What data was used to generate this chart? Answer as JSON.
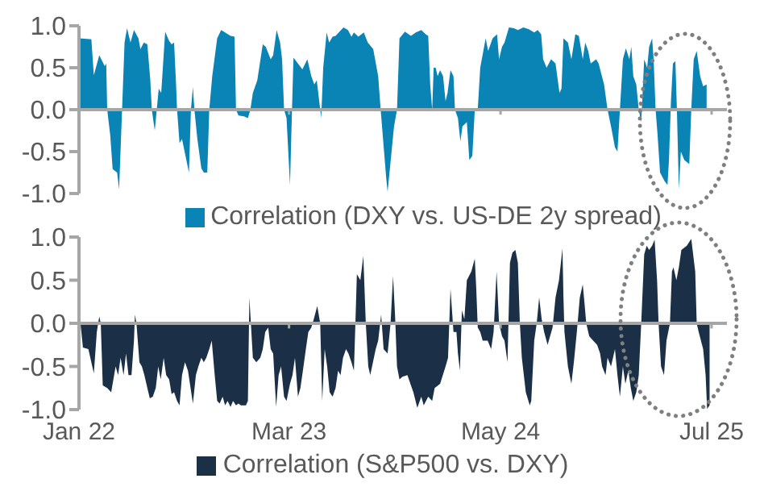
{
  "chart_data": [
    {
      "type": "area",
      "x": [
        "2022-01-02",
        "2022-01-26",
        "2022-01-31",
        "2022-02-11",
        "2022-02-22",
        "2022-02-25",
        "2022-02-27",
        "2022-03-05",
        "2022-03-10",
        "2022-03-19",
        "2022-03-23",
        "2022-03-29",
        "2022-04-03",
        "2022-04-08",
        "2022-04-15",
        "2022-04-22",
        "2022-05-01",
        "2022-05-05",
        "2022-05-12",
        "2022-05-19",
        "2022-05-25",
        "2022-05-28",
        "2022-06-03",
        "2022-06-07",
        "2022-06-11",
        "2022-06-16",
        "2022-06-24",
        "2022-07-02",
        "2022-07-07",
        "2022-07-12",
        "2022-07-16",
        "2022-07-18",
        "2022-07-23",
        "2022-07-28",
        "2022-08-11",
        "2022-08-15",
        "2022-08-19",
        "2022-08-22",
        "2022-08-28",
        "2022-09-05",
        "2022-09-10",
        "2022-09-17",
        "2022-09-21",
        "2022-09-27",
        "2022-10-07",
        "2022-10-15",
        "2022-10-23",
        "2022-11-03",
        "2022-11-11",
        "2022-11-14",
        "2022-11-19",
        "2022-11-30",
        "2022-12-08",
        "2022-12-13",
        "2022-12-18",
        "2022-12-27",
        "2023-01-07",
        "2023-01-13",
        "2023-01-23",
        "2023-01-28",
        "2023-02-04",
        "2023-02-11",
        "2023-02-15",
        "2023-02-19",
        "2023-02-24",
        "2023-03-03",
        "2023-03-07",
        "2023-03-10",
        "2023-03-19",
        "2023-03-28",
        "2023-04-07",
        "2023-04-15",
        "2023-04-21",
        "2023-04-26",
        "2023-05-03",
        "2023-05-05",
        "2023-05-09",
        "2023-05-16",
        "2023-05-21",
        "2023-05-28",
        "2023-06-03",
        "2023-06-14",
        "2023-06-19",
        "2023-06-28",
        "2023-07-05",
        "2023-07-10",
        "2023-07-19",
        "2023-07-30",
        "2023-08-07",
        "2023-08-18",
        "2023-08-28",
        "2023-09-02",
        "2023-09-13",
        "2023-09-16",
        "2023-09-21",
        "2023-09-29",
        "2023-10-05",
        "2023-10-10",
        "2023-10-21",
        "2023-11-02",
        "2023-11-12",
        "2023-11-23",
        "2023-12-02",
        "2023-12-07",
        "2023-12-11",
        "2023-12-15",
        "2023-12-18",
        "2023-12-22",
        "2023-12-26",
        "2023-12-31",
        "2024-01-06",
        "2024-01-11",
        "2024-01-15",
        "2024-01-21",
        "2024-01-27",
        "2024-01-30",
        "2024-02-05",
        "2024-02-10",
        "2024-02-14",
        "2024-02-23",
        "2024-02-28",
        "2024-03-05",
        "2024-03-10",
        "2024-03-16",
        "2024-03-21",
        "2024-04-01",
        "2024-04-06",
        "2024-04-15",
        "2024-04-24",
        "2024-04-28",
        "2024-05-04",
        "2024-05-09",
        "2024-05-18",
        "2024-05-28",
        "2024-06-05",
        "2024-06-16",
        "2024-06-27",
        "2024-07-08",
        "2024-07-15",
        "2024-07-22",
        "2024-07-26",
        "2024-08-02",
        "2024-08-11",
        "2024-08-20",
        "2024-08-28",
        "2024-09-01",
        "2024-09-05",
        "2024-09-14",
        "2024-09-21",
        "2024-09-29",
        "2024-10-06",
        "2024-10-14",
        "2024-10-19",
        "2024-10-25",
        "2024-10-30",
        "2024-11-10",
        "2024-11-15",
        "2024-11-26",
        "2024-12-03",
        "2024-12-10",
        "2024-12-18",
        "2024-12-23",
        "2024-12-28",
        "2025-01-03",
        "2025-01-09",
        "2025-01-16",
        "2025-01-20",
        "2025-01-24",
        "2025-01-30",
        "2025-02-04",
        "2025-02-09",
        "2025-02-15",
        "2025-02-21",
        "2025-02-25",
        "2025-03-03",
        "2025-03-06",
        "2025-03-10",
        "2025-03-14",
        "2025-03-19",
        "2025-03-28",
        "2025-04-03",
        "2025-04-06",
        "2025-04-10",
        "2025-04-14",
        "2025-04-19",
        "2025-04-22",
        "2025-04-26",
        "2025-04-30",
        "2025-05-07",
        "2025-05-17",
        "2025-05-21",
        "2025-05-26",
        "2025-06-01",
        "2025-06-08",
        "2025-06-14",
        "2025-06-21"
      ],
      "series": [
        {
          "name": "Correlation (DXY vs. US-DE 2y spread)",
          "color": "#0a83b5",
          "values": [
            0.85,
            0.84,
            0.41,
            0.65,
            0.52,
            0.55,
            0,
            -0.3,
            -0.71,
            -0.75,
            -0.95,
            0,
            0.8,
            0.97,
            0.8,
            0.95,
            0.85,
            0.72,
            0.8,
            0.78,
            0.35,
            0,
            -0.25,
            0,
            0.25,
            0.2,
            0.93,
            0.82,
            0.78,
            0.8,
            0.3,
            0,
            -0.4,
            -0.35,
            -0.75,
            0,
            0.27,
            0,
            -0.35,
            -0.7,
            -0.75,
            -0.75,
            0,
            0.4,
            0.85,
            0.95,
            0.92,
            0.88,
            0.87,
            0,
            -0.07,
            -0.08,
            -0.1,
            0,
            0.2,
            0.35,
            0.78,
            0.75,
            0.6,
            0.65,
            0.95,
            0.8,
            0.6,
            0,
            -0.1,
            -0.9,
            0,
            0.62,
            0.55,
            0.48,
            0.6,
            0.4,
            0.3,
            0.35,
            0,
            -0.1,
            0.5,
            0.92,
            0.8,
            0.87,
            0.88,
            0.95,
            0.98,
            0.95,
            0.87,
            0.92,
            0.87,
            0.92,
            0.8,
            0.72,
            0.4,
            0,
            -0.8,
            -0.98,
            -0.68,
            -0.2,
            0,
            0.85,
            0.93,
            0.88,
            0.92,
            0.95,
            0.9,
            0.88,
            0.3,
            0,
            0.5,
            0.5,
            0.4,
            0.47,
            0.4,
            0.1,
            0.2,
            0.47,
            0.4,
            0,
            -0.1,
            -0.38,
            -0.2,
            -0.15,
            -0.6,
            -0.55,
            0,
            0,
            0.5,
            0.85,
            0.7,
            0.85,
            0.9,
            0.6,
            0.75,
            0.8,
            0.98,
            0.97,
            0.95,
            0.98,
            0.96,
            0.92,
            0.95,
            0.9,
            0.6,
            0.5,
            0.6,
            0.55,
            0.2,
            0.25,
            0.85,
            0.8,
            0.6,
            0.9,
            0.88,
            0.6,
            0.8,
            0.7,
            0.55,
            0.6,
            0.55,
            0.3,
            0,
            -0.2,
            -0.45,
            -0.5,
            0,
            0.6,
            0.73,
            0.6,
            0.75,
            0.4,
            0.3,
            0,
            -0.15,
            0.6,
            0.5,
            0.75,
            0.85,
            0.6,
            0,
            -0.3,
            -0.75,
            -0.85,
            -0.9,
            -0.6,
            0.1,
            0.55,
            0.58,
            0,
            -0.95,
            -0.5,
            -0.6,
            -0.65,
            0,
            0.6,
            0.7,
            0.4,
            0.28,
            0.3
          ]
        }
      ],
      "xlim": [
        "2022-01-01",
        "2025-08-01"
      ],
      "xticks": [
        {
          "value": "2022-01-01",
          "label": null
        },
        {
          "value": "2023-03-01",
          "label": null
        },
        {
          "value": "2024-05-01",
          "label": null
        },
        {
          "value": "2025-07-01",
          "label": null
        }
      ],
      "ylim": [
        -1,
        1
      ],
      "yticks": [
        {
          "value": -1,
          "label": "-1.0"
        },
        {
          "value": -0.5,
          "label": "-0.5"
        },
        {
          "value": 0,
          "label": "0.0"
        },
        {
          "value": 0.5,
          "label": "0.5"
        },
        {
          "value": 1,
          "label": "1.0"
        }
      ],
      "tick_labels": "y",
      "legend": "bottom"
    },
    {
      "type": "area",
      "x": [
        "2022-01-04",
        "2022-01-09",
        "2022-01-20",
        "2022-01-31",
        "2022-02-06",
        "2022-02-11",
        "2022-02-14",
        "2022-02-18",
        "2022-02-27",
        "2022-03-07",
        "2022-03-16",
        "2022-03-21",
        "2022-03-26",
        "2022-04-01",
        "2022-04-06",
        "2022-04-11",
        "2022-04-17",
        "2022-04-22",
        "2022-04-24",
        "2022-04-27",
        "2022-05-03",
        "2022-05-08",
        "2022-05-13",
        "2022-05-19",
        "2022-05-24",
        "2022-05-30",
        "2022-06-05",
        "2022-06-10",
        "2022-06-15",
        "2022-06-21",
        "2022-06-26",
        "2022-07-02",
        "2022-07-07",
        "2022-07-12",
        "2022-07-18",
        "2022-07-23",
        "2022-07-28",
        "2022-08-03",
        "2022-08-09",
        "2022-08-19",
        "2022-08-25",
        "2022-08-30",
        "2022-09-05",
        "2022-09-10",
        "2022-09-15",
        "2022-09-21",
        "2022-09-26",
        "2022-10-02",
        "2022-10-07",
        "2022-10-12",
        "2022-10-18",
        "2022-10-23",
        "2022-10-28",
        "2022-11-03",
        "2022-11-08",
        "2022-11-14",
        "2022-11-19",
        "2022-11-24",
        "2022-12-04",
        "2022-12-08",
        "2022-12-11",
        "2022-12-14",
        "2022-12-18",
        "2022-12-25",
        "2023-01-02",
        "2023-01-07",
        "2023-01-12",
        "2023-01-18",
        "2023-01-23",
        "2023-01-28",
        "2023-02-03",
        "2023-02-08",
        "2023-02-13",
        "2023-02-19",
        "2023-02-24",
        "2023-03-03",
        "2023-03-08",
        "2023-03-13",
        "2023-03-19",
        "2023-03-24",
        "2023-03-29",
        "2023-04-04",
        "2023-04-09",
        "2023-04-15",
        "2023-04-20",
        "2023-04-27",
        "2023-05-03",
        "2023-05-07",
        "2023-05-12",
        "2023-05-17",
        "2023-05-22",
        "2023-05-28",
        "2023-06-03",
        "2023-06-08",
        "2023-06-13",
        "2023-06-18",
        "2023-06-24",
        "2023-06-29",
        "2023-07-05",
        "2023-07-10",
        "2023-07-13",
        "2023-07-16",
        "2023-07-23",
        "2023-07-29",
        "2023-08-03",
        "2023-08-08",
        "2023-08-12",
        "2023-08-23",
        "2023-08-28",
        "2023-09-03",
        "2023-09-08",
        "2023-09-16",
        "2023-09-22",
        "2023-09-27",
        "2023-10-01",
        "2023-10-05",
        "2023-10-10",
        "2023-10-16",
        "2023-10-26",
        "2023-11-01",
        "2023-11-07",
        "2023-11-15",
        "2023-11-23",
        "2023-11-28",
        "2023-12-07",
        "2023-12-15",
        "2023-12-20",
        "2023-12-31",
        "2024-01-11",
        "2024-01-16",
        "2024-01-21",
        "2024-01-27",
        "2024-02-02",
        "2024-02-05",
        "2024-02-09",
        "2024-02-13",
        "2024-02-18",
        "2024-02-23",
        "2024-03-03",
        "2024-03-10",
        "2024-03-13",
        "2024-03-16",
        "2024-03-21",
        "2024-03-26",
        "2024-04-05",
        "2024-04-12",
        "2024-04-17",
        "2024-04-23",
        "2024-04-28",
        "2024-05-04",
        "2024-05-09",
        "2024-05-15",
        "2024-05-20",
        "2024-05-25",
        "2024-05-31",
        "2024-06-05",
        "2024-06-09",
        "2024-06-13",
        "2024-06-21",
        "2024-06-29",
        "2024-07-02",
        "2024-07-08",
        "2024-07-13",
        "2024-07-18",
        "2024-07-23",
        "2024-07-28",
        "2024-08-04",
        "2024-08-09",
        "2024-08-14",
        "2024-08-20",
        "2024-08-27",
        "2024-09-03",
        "2024-09-05",
        "2024-09-07",
        "2024-09-14",
        "2024-09-21",
        "2024-09-26",
        "2024-10-02",
        "2024-10-08",
        "2024-10-14",
        "2024-10-18",
        "2024-10-21",
        "2024-10-27",
        "2024-11-04",
        "2024-11-12",
        "2024-11-18",
        "2024-11-22",
        "2024-11-29",
        "2024-12-03",
        "2024-12-10",
        "2024-12-18",
        "2024-12-23",
        "2024-12-28",
        "2025-01-03",
        "2025-01-08",
        "2025-01-14",
        "2025-01-19",
        "2025-01-24",
        "2025-01-30",
        "2025-02-04",
        "2025-02-09",
        "2025-02-15",
        "2025-02-20",
        "2025-02-25",
        "2025-03-03",
        "2025-03-08",
        "2025-03-13",
        "2025-03-16",
        "2025-03-21",
        "2025-03-27",
        "2025-04-01",
        "2025-04-08",
        "2025-04-12",
        "2025-04-15",
        "2025-04-21",
        "2025-04-26",
        "2025-05-01",
        "2025-05-12",
        "2025-05-21",
        "2025-05-29",
        "2025-06-01",
        "2025-06-05",
        "2025-06-14",
        "2025-06-19",
        "2025-06-22",
        "2025-06-27"
      ],
      "series": [
        {
          "name": "Correlation (S&P500 vs. DXY)",
          "color": "#1b3046",
          "values": [
            0,
            -0.28,
            -0.3,
            -0.58,
            -0.1,
            0.08,
            0,
            -0.72,
            -0.75,
            -0.8,
            -0.5,
            -0.6,
            -0.4,
            -0.6,
            -0.35,
            -0.6,
            -0.6,
            -0.2,
            0.1,
            0,
            -0.45,
            -0.5,
            -0.6,
            -0.75,
            -0.87,
            -0.85,
            -0.75,
            -0.5,
            -0.65,
            -0.4,
            -0.6,
            -0.65,
            -0.82,
            -0.8,
            -0.9,
            -0.95,
            -0.6,
            -0.45,
            -0.55,
            -0.93,
            -0.6,
            -0.5,
            -0.4,
            -0.45,
            -0.4,
            -0.3,
            -0.2,
            -0.6,
            -0.9,
            -0.93,
            -0.85,
            -0.95,
            -0.9,
            -0.97,
            -0.9,
            -0.95,
            -0.93,
            -0.95,
            -0.95,
            -0.9,
            0.3,
            0,
            -0.4,
            -0.45,
            -0.4,
            -0.3,
            -0.1,
            -0.05,
            -0.3,
            -0.35,
            -0.97,
            -0.6,
            -0.5,
            -0.85,
            -0.9,
            -0.7,
            -0.6,
            -0.4,
            -0.85,
            -0.75,
            -0.55,
            -0.3,
            -0.1,
            -0.05,
            0.05,
            0.2,
            0,
            -0.9,
            -0.3,
            -0.5,
            -0.8,
            -0.85,
            -0.75,
            -0.55,
            -0.6,
            -0.4,
            -0.3,
            -0.35,
            -0.45,
            -0.55,
            0,
            0.57,
            0.5,
            0.78,
            0,
            -0.5,
            -0.6,
            -0.3,
            -0.2,
            0.1,
            -0.3,
            -0.35,
            0,
            0.55,
            0.1,
            -0.5,
            -0.65,
            -0.62,
            -0.6,
            -0.7,
            -0.8,
            -0.98,
            -0.85,
            -0.95,
            -0.85,
            -0.9,
            -0.75,
            -0.7,
            -0.5,
            -0.4,
            0.4,
            -0.1,
            -0.1,
            -0.35,
            -0.55,
            0.15,
            0.05,
            0.5,
            0.6,
            0.75,
            0.4,
            -0.05,
            -0.1,
            -0.2,
            -0.2,
            -0.3,
            -0.1,
            0.6,
            0,
            -0.15,
            -0.2,
            -0.45,
            0.7,
            0.82,
            0.85,
            0.7,
            0,
            -0.4,
            -0.8,
            -0.95,
            -0.9,
            -0.2,
            0,
            0.3,
            0.05,
            -0.1,
            -0.25,
            -0.15,
            -0.05,
            0.3,
            0.5,
            0.87,
            0.3,
            -0.1,
            -0.5,
            -0.7,
            -0.45,
            -0.1,
            0.3,
            0.45,
            0.2,
            0,
            -0.15,
            -0.2,
            -0.25,
            -0.35,
            -0.5,
            -0.6,
            -0.4,
            -0.5,
            -0.3,
            -0.6,
            -0.85,
            -0.5,
            -0.7,
            -0.55,
            -0.75,
            -0.9,
            -0.8,
            -0.6,
            0,
            0.8,
            0.9,
            0.85,
            0.9,
            0.97,
            0.5,
            0,
            -0.5,
            -0.6,
            -0.2,
            0,
            0.6,
            0.65,
            0.5,
            0.65,
            0.85,
            0.9,
            0.98,
            0.6,
            0,
            -0.1,
            -0.3,
            -0.6,
            -0.99,
            -0.95
          ]
        }
      ],
      "xlim": [
        "2022-01-01",
        "2025-08-01"
      ],
      "xticks": [
        {
          "value": "2022-01-01",
          "label": "Jan 22"
        },
        {
          "value": "2023-03-01",
          "label": "Mar 23"
        },
        {
          "value": "2024-05-01",
          "label": "May 24"
        },
        {
          "value": "2025-07-01",
          "label": "Jul 25"
        }
      ],
      "ylim": [
        -1,
        1
      ],
      "yticks": [
        {
          "value": -1,
          "label": "-1.0"
        },
        {
          "value": -0.5,
          "label": "-0.5"
        },
        {
          "value": 0,
          "label": "0.0"
        },
        {
          "value": 0.5,
          "label": "0.5"
        },
        {
          "value": 1,
          "label": "1.0"
        }
      ],
      "legend": "bottom"
    }
  ]
}
